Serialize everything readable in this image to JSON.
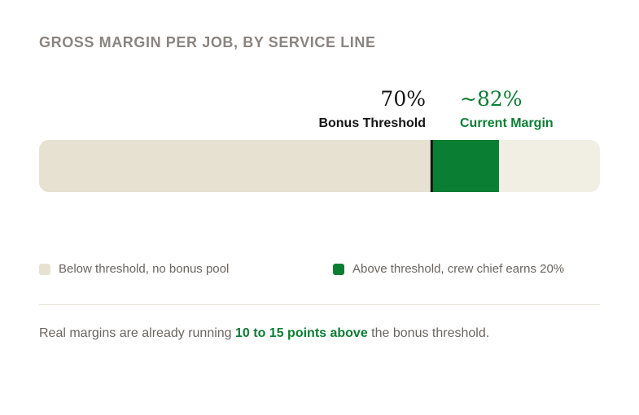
{
  "title": "GROSS MARGIN PER JOB, BY SERVICE LINE",
  "colors": {
    "track": "#f1eee4",
    "below": "#e7e1d1",
    "above": "#0a7e32",
    "threshold_line": "#141414",
    "accent_text": "#0a7e32"
  },
  "chart_data": {
    "type": "bar",
    "orientation": "horizontal",
    "title": "GROSS MARGIN PER JOB, BY SERVICE LINE",
    "xlim": [
      0,
      100
    ],
    "unit": "%",
    "segments": [
      {
        "name": "Below threshold, no bonus pool",
        "start": 0,
        "end": 70,
        "color": "#e7e1d1"
      },
      {
        "name": "Above threshold, crew chief earns 20%",
        "start": 70,
        "end": 82,
        "color": "#0a7e32"
      }
    ],
    "markers": [
      {
        "value": 70,
        "value_label": "70%",
        "label": "Bonus Threshold"
      },
      {
        "value": 82,
        "value_label": "~82%",
        "label": "Current Margin"
      }
    ],
    "grid": false,
    "legend_position": "bottom"
  },
  "legend": [
    {
      "label": "Below threshold, no bonus pool",
      "color": "#e7e1d1"
    },
    {
      "label": "Above threshold, crew chief earns 20%",
      "color": "#0a7e32"
    }
  ],
  "note": {
    "before": "Real margins are already running ",
    "highlight": "10 to 15 points above",
    "after": " the bonus threshold."
  }
}
